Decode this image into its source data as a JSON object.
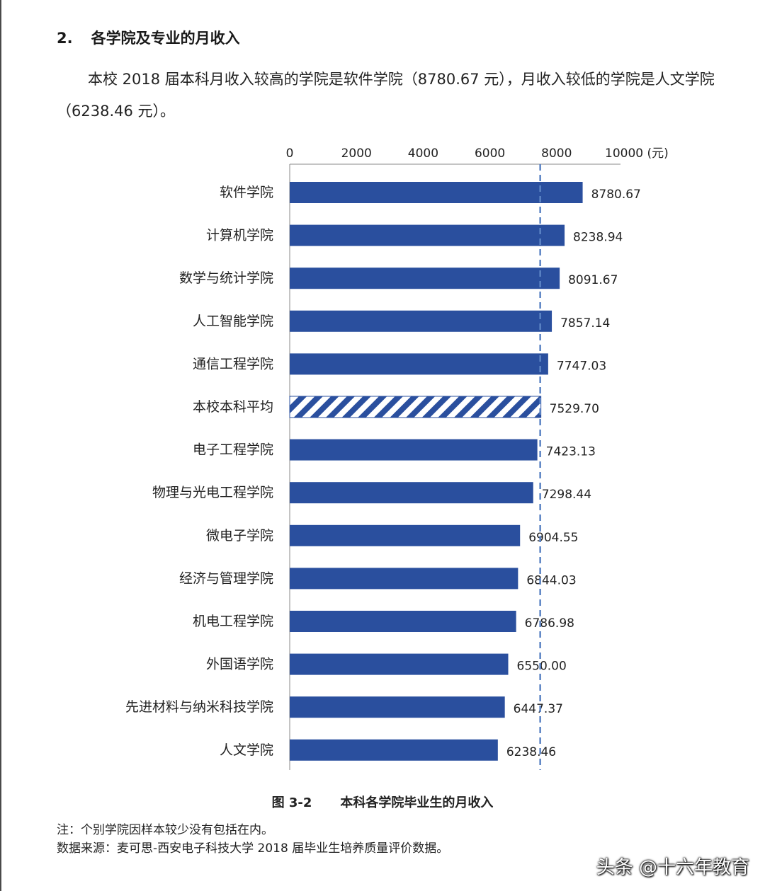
{
  "document": {
    "section_number": "2.",
    "section_title": "各学院及专业的月收入",
    "paragraph": "本校 2018 届本科月收入较高的学院是软件学院（8780.67 元），月收入较低的学院是人文学院（6238.46 元）。",
    "figure_number": "图 3-2",
    "figure_title": "本科各学院毕业生的月收入",
    "note": "注：个别学院因样本较少没有包括在内。",
    "source": "数据来源：麦可思-西安电子科技大学 2018 届毕业生培养质量评价数据。",
    "watermark": "头条 @十六年教育"
  },
  "colors": {
    "bar": "#2a4f9e",
    "average_hatch": "#2a4f9e",
    "average_line": "#5b83c4",
    "axis": "#888888"
  },
  "chart_data": {
    "type": "bar",
    "orientation": "horizontal",
    "xlim": [
      0,
      10000
    ],
    "xticks": [
      "0",
      "2000",
      "4000",
      "6000",
      "8000",
      "10000 (元)"
    ],
    "xtick_values": [
      0,
      2000,
      4000,
      6000,
      8000,
      10000
    ],
    "axis_position": "top",
    "grid": false,
    "legend": "none",
    "reference_line": {
      "value": 7529.7,
      "style": "dashed"
    },
    "categories": [
      "软件学院",
      "计算机学院",
      "数学与统计学院",
      "人工智能学院",
      "通信工程学院",
      "本校本科平均",
      "电子工程学院",
      "物理与光电工程学院",
      "微电子学院",
      "经济与管理学院",
      "机电工程学院",
      "外国语学院",
      "先进材料与纳米科技学院",
      "人文学院"
    ],
    "values": [
      8780.67,
      8238.94,
      8091.67,
      7857.14,
      7747.03,
      7529.7,
      7423.13,
      7298.44,
      6904.55,
      6844.03,
      6786.98,
      6550.0,
      6447.37,
      6238.46
    ],
    "value_labels": [
      "8780.67",
      "8238.94",
      "8091.67",
      "7857.14",
      "7747.03",
      "7529.70",
      "7423.13",
      "7298.44",
      "6904.55",
      "6844.03",
      "6786.98",
      "6550.00",
      "6447.37",
      "6238.46"
    ],
    "highlighted_category": "本校本科平均"
  }
}
